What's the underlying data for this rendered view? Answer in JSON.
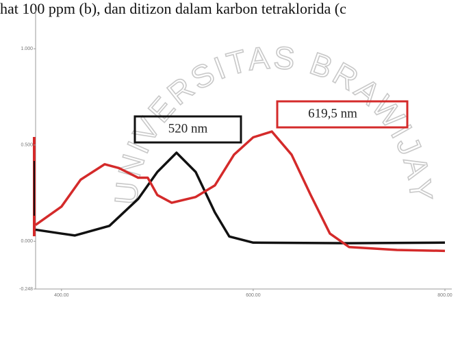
{
  "caption": "hat 100 ppm (b), dan ditizon dalam karbon tetraklorida (c",
  "watermark": "UNIVERSITAS BRAWIJAYA",
  "chart_data": {
    "type": "line",
    "xlim": [
      373,
      800
    ],
    "xticks": [
      {
        "value": 400,
        "label": "400.00"
      },
      {
        "value": 600,
        "label": "600.00"
      },
      {
        "value": 800,
        "label": "800.00"
      }
    ],
    "ylim": [
      -0.248,
      1.2
    ],
    "yticks": [
      {
        "value": -0.248,
        "label": "-0.248"
      },
      {
        "value": 0,
        "label": "0.000"
      },
      {
        "value": 0.5,
        "label": "0.500"
      },
      {
        "value": 1,
        "label": "1.000"
      }
    ],
    "series": [
      {
        "color": "#111111",
        "x": [
          373,
          400,
          414,
          450,
          480,
          500,
          520,
          540,
          560,
          575,
          600,
          700,
          800
        ],
        "values": [
          0.06,
          0.04,
          0.03,
          0.08,
          0.22,
          0.36,
          0.46,
          0.36,
          0.15,
          0.025,
          -0.007,
          -0.01,
          -0.007
        ]
      },
      {
        "color": "#d42a2a",
        "x": [
          373,
          400,
          420,
          445,
          460,
          480,
          490,
          500,
          515,
          540,
          560,
          580,
          600,
          619.5,
          640,
          660,
          680,
          700,
          750,
          800
        ],
        "values": [
          0.085,
          0.18,
          0.32,
          0.4,
          0.38,
          0.33,
          0.33,
          0.24,
          0.2,
          0.23,
          0.29,
          0.45,
          0.54,
          0.57,
          0.45,
          0.24,
          0.04,
          -0.03,
          -0.045,
          -0.05
        ]
      }
    ],
    "annotations": [
      {
        "text": "520 nm",
        "color": "#111111"
      },
      {
        "text": "619,5 nm",
        "color": "#d42a2a"
      }
    ]
  }
}
